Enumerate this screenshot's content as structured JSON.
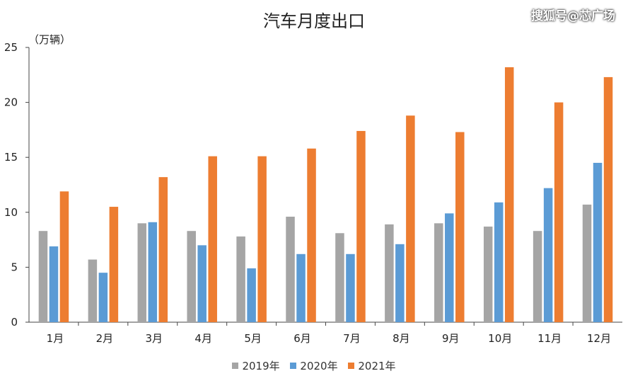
{
  "watermark": "搜狐号@芯广场",
  "chart_data": {
    "type": "bar",
    "title": "汽车月度出口",
    "ylabel": "（万辆）",
    "xlabel": "",
    "categories": [
      "1月",
      "2月",
      "3月",
      "4月",
      "5月",
      "6月",
      "7月",
      "8月",
      "9月",
      "10月",
      "11月",
      "12月"
    ],
    "ylim": [
      0,
      25
    ],
    "yticks": [
      0,
      5,
      10,
      15,
      20,
      25
    ],
    "grid": false,
    "legend_position": "bottom",
    "series": [
      {
        "name": "2019年",
        "color": "#a5a5a5",
        "values": [
          8.3,
          5.7,
          9.0,
          8.3,
          7.8,
          9.6,
          8.1,
          8.9,
          9.0,
          8.7,
          8.3,
          10.7
        ]
      },
      {
        "name": "2020年",
        "color": "#5b9bd5",
        "values": [
          6.9,
          4.5,
          9.1,
          7.0,
          4.9,
          6.2,
          6.2,
          7.1,
          9.9,
          10.9,
          12.2,
          14.5
        ]
      },
      {
        "name": "2021年",
        "color": "#ed7d31",
        "values": [
          11.9,
          10.5,
          13.2,
          15.1,
          15.1,
          15.8,
          17.4,
          18.8,
          17.3,
          23.2,
          20.0,
          22.3
        ]
      }
    ]
  }
}
